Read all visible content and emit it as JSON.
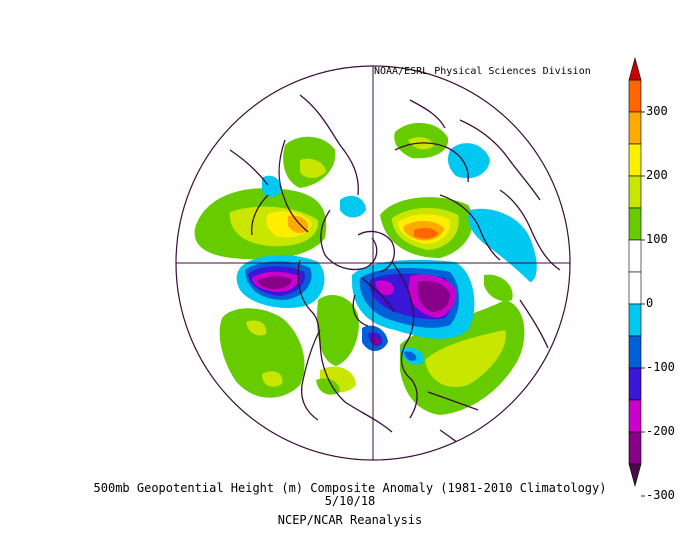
{
  "credit": "NOAA/ESRL Physical Sciences Division",
  "caption": {
    "line1": "500mb Geopotential Height (m) Composite Anomaly (1981-2010 Climatology)",
    "line2": "5/10/18",
    "line3": "NCEP/NCAR Reanalysis"
  },
  "colorbar": {
    "labels": [
      "300",
      "200",
      "100",
      "0",
      "-100",
      "-200",
      "-300"
    ],
    "bins": [
      {
        "from": 300,
        "to": 350,
        "color": "#cc0000"
      },
      {
        "from": 250,
        "to": 300,
        "color": "#ff6600"
      },
      {
        "from": 200,
        "to": 250,
        "color": "#ffaa00"
      },
      {
        "from": 150,
        "to": 200,
        "color": "#ffee00"
      },
      {
        "from": 100,
        "to": 150,
        "color": "#c8e600"
      },
      {
        "from": 50,
        "to": 100,
        "color": "#66cc00"
      },
      {
        "from": 0,
        "to": 50,
        "color": "#ffffff"
      },
      {
        "from": -50,
        "to": 0,
        "color": "#ffffff"
      },
      {
        "from": -100,
        "to": -50,
        "color": "#00c8f0"
      },
      {
        "from": -150,
        "to": -100,
        "color": "#0060d8"
      },
      {
        "from": -200,
        "to": -150,
        "color": "#3a16d8"
      },
      {
        "from": -250,
        "to": -200,
        "color": "#cc00cc"
      },
      {
        "from": -300,
        "to": -250,
        "color": "#880088"
      },
      {
        "from": -350,
        "to": -300,
        "color": "#4a0a4a"
      }
    ]
  }
}
